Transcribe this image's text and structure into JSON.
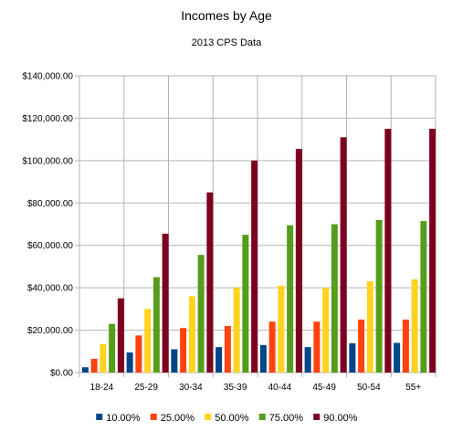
{
  "chart_data": {
    "type": "bar",
    "title": "Incomes by Age",
    "subtitle": "2013 CPS Data",
    "xlabel": "",
    "ylabel": "",
    "categories": [
      "18-24",
      "25-29",
      "30-34",
      "35-39",
      "40-44",
      "45-49",
      "50-54",
      "55+"
    ],
    "ylim": [
      0,
      140000
    ],
    "y_ticks": [
      0,
      20000,
      40000,
      60000,
      80000,
      100000,
      120000,
      140000
    ],
    "y_tick_labels": [
      "$0.00",
      "$20,000.00",
      "$40,000.00",
      "$60,000.00",
      "$80,000.00",
      "$100,000.00",
      "$120,000.00",
      "$140,000.00"
    ],
    "grid": "horizontal",
    "legend_position": "bottom",
    "series": [
      {
        "name": "10.00%",
        "color": "#004586",
        "values": [
          2500,
          9500,
          11000,
          12000,
          13000,
          12000,
          13800,
          14000
        ]
      },
      {
        "name": "25.00%",
        "color": "#ff420e",
        "values": [
          6500,
          17500,
          21000,
          22000,
          24000,
          24000,
          25000,
          25000
        ]
      },
      {
        "name": "50.00%",
        "color": "#ffd320",
        "values": [
          13500,
          30000,
          36000,
          40000,
          41000,
          40000,
          43000,
          44000
        ]
      },
      {
        "name": "75.00%",
        "color": "#579d1c",
        "values": [
          23000,
          45000,
          55500,
          65000,
          69500,
          70000,
          72000,
          71500
        ]
      },
      {
        "name": "90.00%",
        "color": "#7e0021",
        "values": [
          35000,
          65500,
          85000,
          100000,
          105500,
          111000,
          115000,
          115000
        ]
      }
    ]
  }
}
